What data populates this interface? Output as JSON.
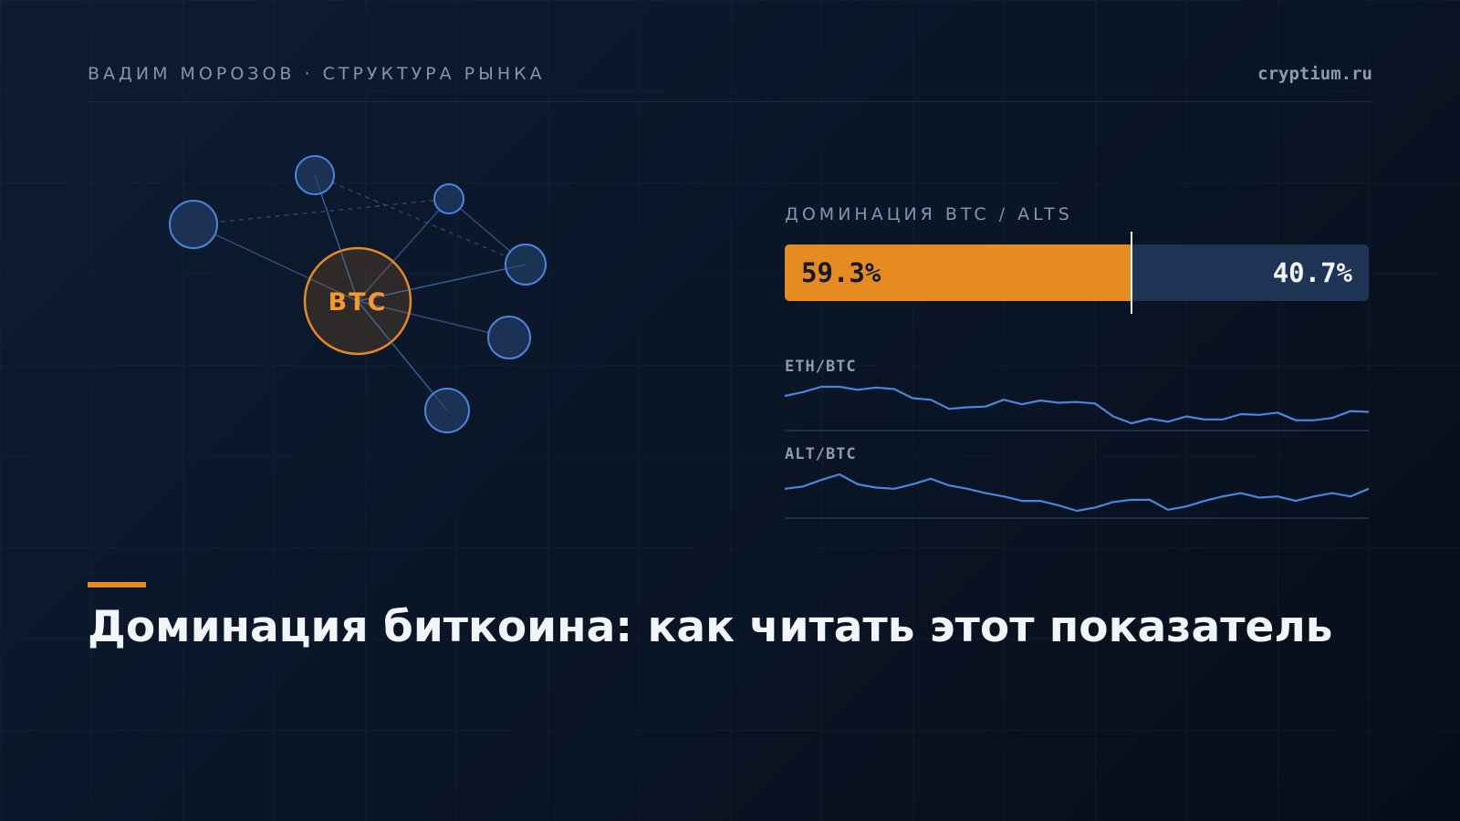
{
  "header": {
    "author_topic": "ВАДИМ МОРОЗОВ · СТРУКТУРА РЫНКА",
    "site": "cryptium.ru"
  },
  "network": {
    "center_label": "BTC",
    "center_color": "#e68a22",
    "node_color": "#4a86e0"
  },
  "dominance": {
    "label": "ДОМИНАЦИЯ BTC / ALTS",
    "btc_share": 59.3,
    "btc_text": "59.3%",
    "alt_text": "40.7%",
    "btc_color": "#e68a22",
    "alt_color": "#1d3454"
  },
  "sparklines": [
    {
      "label": "ETH/BTC",
      "color": "#4a86e0",
      "values": [
        0.86,
        0.865,
        0.872,
        0.872,
        0.868,
        0.871,
        0.869,
        0.857,
        0.855,
        0.843,
        0.845,
        0.846,
        0.855,
        0.849,
        0.854,
        0.851,
        0.852,
        0.85,
        0.833,
        0.824,
        0.83,
        0.826,
        0.833,
        0.829,
        0.829,
        0.836,
        0.835,
        0.838,
        0.828,
        0.828,
        0.831,
        0.84,
        0.839
      ]
    },
    {
      "label": "ALT/BTC",
      "color": "#4a86e0",
      "values": [
        0.69,
        0.692,
        0.698,
        0.703,
        0.694,
        0.691,
        0.69,
        0.694,
        0.699,
        0.693,
        0.69,
        0.686,
        0.683,
        0.679,
        0.679,
        0.675,
        0.67,
        0.673,
        0.678,
        0.68,
        0.68,
        0.671,
        0.674,
        0.679,
        0.683,
        0.686,
        0.682,
        0.683,
        0.679,
        0.683,
        0.686,
        0.683,
        0.69
      ]
    }
  ],
  "title": "Доминация биткоина: как читать этот показатель"
}
